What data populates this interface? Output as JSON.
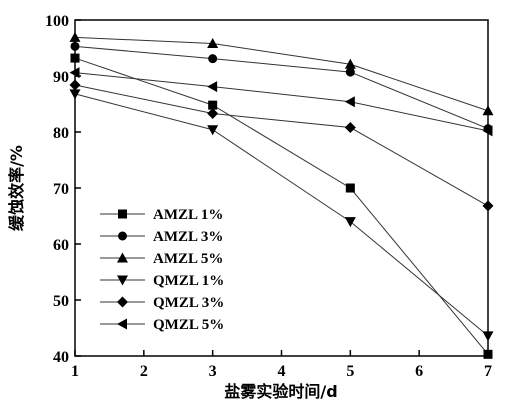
{
  "chart_data": {
    "type": "line",
    "xlabel": "盐雾实验时间/d",
    "ylabel": "缓蚀效率/%",
    "xlim": [
      1,
      7
    ],
    "ylim": [
      40,
      100
    ],
    "xticks": [
      1,
      2,
      3,
      4,
      5,
      6,
      7
    ],
    "yticks": [
      40,
      50,
      60,
      70,
      80,
      90,
      100
    ],
    "grid": false,
    "legend_position": "bottom-left",
    "x": [
      1,
      3,
      5,
      7
    ],
    "series": [
      {
        "name": "AMZL 1%",
        "marker": "square",
        "values": [
          93.2,
          84.8,
          70.0,
          40.3
        ]
      },
      {
        "name": "AMZL 3%",
        "marker": "circle",
        "values": [
          95.3,
          93.1,
          90.7,
          80.6
        ]
      },
      {
        "name": "AMZL 5%",
        "marker": "triangle-up",
        "values": [
          96.9,
          95.8,
          92.1,
          83.8
        ]
      },
      {
        "name": "QMZL 1%",
        "marker": "triangle-down",
        "values": [
          86.8,
          80.4,
          64.0,
          43.6
        ]
      },
      {
        "name": "QMZL 3%",
        "marker": "diamond",
        "values": [
          88.4,
          83.3,
          80.8,
          66.8
        ]
      },
      {
        "name": "QMZL 5%",
        "marker": "triangle-left",
        "values": [
          90.6,
          88.1,
          85.4,
          80.2
        ]
      }
    ]
  }
}
